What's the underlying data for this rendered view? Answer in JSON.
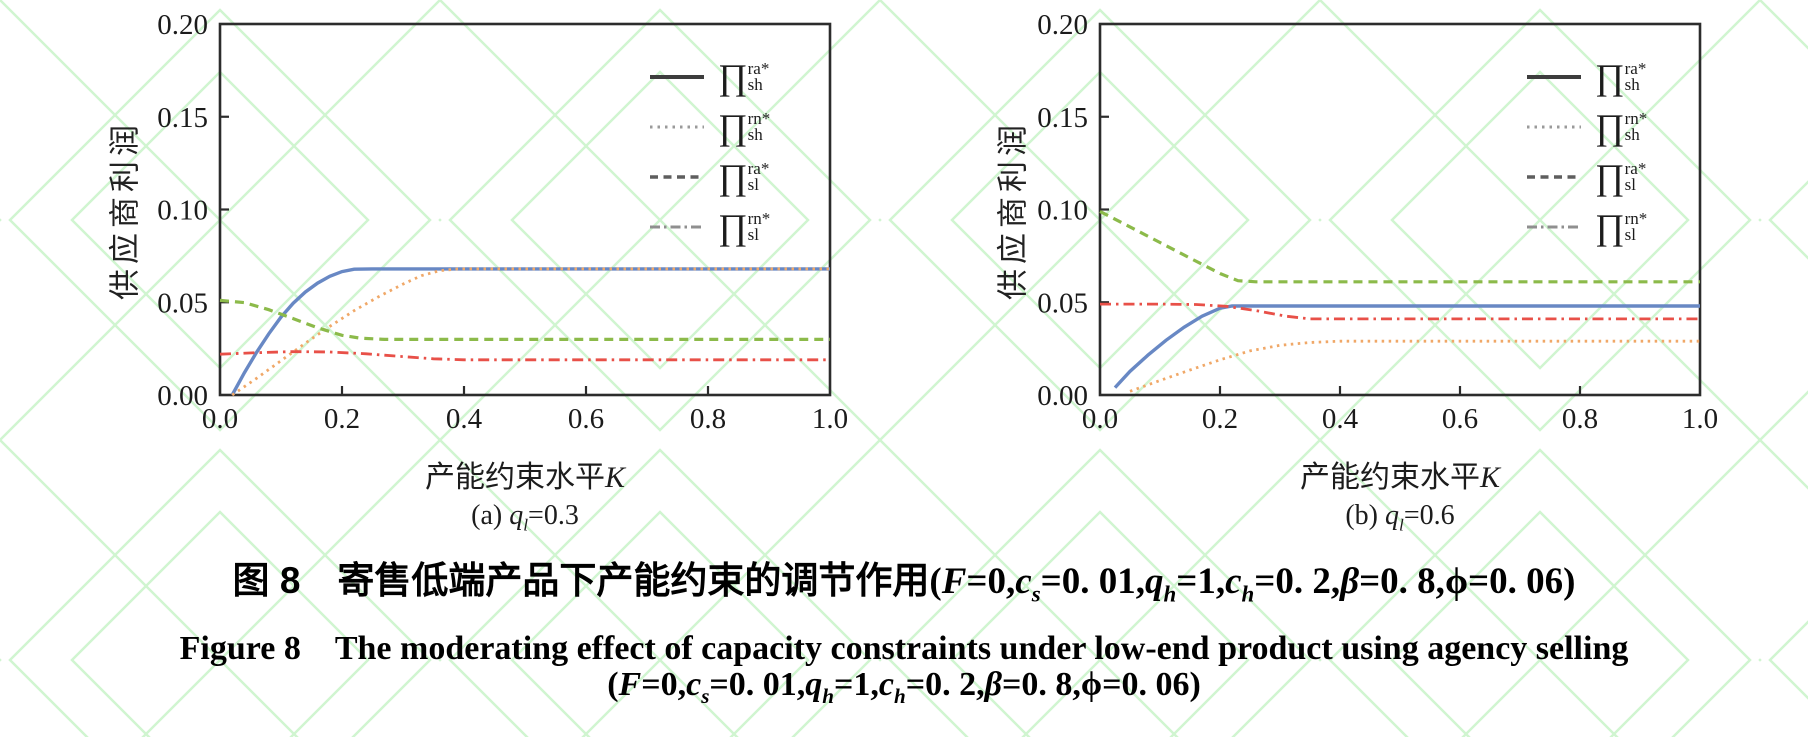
{
  "figure": {
    "caption_cn": [
      {
        "t": "图 8　寄售低端产品下产能约束的调节作用"
      },
      {
        "t": "(",
        "m": 1
      },
      {
        "t": "F",
        "m": 1,
        "i": 1
      },
      {
        "t": "=0,",
        "m": 1
      },
      {
        "t": "c",
        "m": 1,
        "i": 1
      },
      {
        "t": "s",
        "m": 1,
        "i": 1,
        "sub": 1
      },
      {
        "t": "=0. 01,",
        "m": 1
      },
      {
        "t": "q",
        "m": 1,
        "i": 1
      },
      {
        "t": "h",
        "m": 1,
        "i": 1,
        "sub": 1
      },
      {
        "t": "=1,",
        "m": 1
      },
      {
        "t": "c",
        "m": 1,
        "i": 1
      },
      {
        "t": "h",
        "m": 1,
        "i": 1,
        "sub": 1
      },
      {
        "t": "=0. 2,",
        "m": 1
      },
      {
        "t": "β",
        "m": 1,
        "i": 1
      },
      {
        "t": "=0. 8,",
        "m": 1
      },
      {
        "t": "ϕ",
        "m": 1
      },
      {
        "t": "=0. 06)",
        "m": 1
      }
    ],
    "caption_en": [
      {
        "t": "Figure 8　The moderating effect of capacity constraints under low-end product using agency selling",
        "m": 1
      }
    ],
    "caption_params": [
      {
        "t": "(",
        "m": 1
      },
      {
        "t": "F",
        "m": 1,
        "i": 1
      },
      {
        "t": "=0,",
        "m": 1
      },
      {
        "t": "c",
        "m": 1,
        "i": 1
      },
      {
        "t": "s",
        "m": 1,
        "i": 1,
        "sub": 1
      },
      {
        "t": "=0. 01,",
        "m": 1
      },
      {
        "t": "q",
        "m": 1,
        "i": 1
      },
      {
        "t": "h",
        "m": 1,
        "i": 1,
        "sub": 1
      },
      {
        "t": "=1,",
        "m": 1
      },
      {
        "t": "c",
        "m": 1,
        "i": 1
      },
      {
        "t": "h",
        "m": 1,
        "i": 1,
        "sub": 1
      },
      {
        "t": "=0. 2,",
        "m": 1
      },
      {
        "t": "β",
        "m": 1,
        "i": 1
      },
      {
        "t": "=0. 8,",
        "m": 1
      },
      {
        "t": "ϕ",
        "m": 1
      },
      {
        "t": "=0. 06)",
        "m": 1
      }
    ]
  },
  "watermark_color": "#a9eda9",
  "chart_data": [
    {
      "type": "line",
      "title": "",
      "ylabel": "供应商利润",
      "xlabel": "产能约束水平K",
      "xlabel_parts": [
        {
          "t": "产能约束水平"
        },
        {
          "t": "K",
          "m": 1,
          "i": 1
        }
      ],
      "subcaption_parts": [
        {
          "t": "(a) ",
          "m": 1
        },
        {
          "t": "q",
          "m": 1,
          "i": 1
        },
        {
          "t": "l",
          "m": 1,
          "i": 1,
          "sub": 1
        },
        {
          "t": "=0.3",
          "m": 1
        }
      ],
      "xlim": [
        0,
        1
      ],
      "ylim": [
        0,
        0.2
      ],
      "xticks": [
        "0.0",
        "0.2",
        "0.4",
        "0.6",
        "0.8",
        "1.0"
      ],
      "yticks": [
        "0.00",
        "0.05",
        "0.10",
        "0.15",
        "0.20"
      ],
      "grid": false,
      "legend_position": "upper right",
      "legend": [
        {
          "sample": "solid",
          "sup": "ra*",
          "sub": "sh",
          "label_text": "∏_sh^ra*"
        },
        {
          "sample": "dotted",
          "sup": "rn*",
          "sub": "sh",
          "label_text": "∏_sh^rn*"
        },
        {
          "sample": "dashed",
          "sup": "ra*",
          "sub": "sl",
          "label_text": "∏_sl^ra*"
        },
        {
          "sample": "dashdot",
          "sup": "rn*",
          "sub": "sl",
          "label_text": "∏_sl^rn*"
        }
      ],
      "series": [
        {
          "name": "profit-sh-ra",
          "style": "solid",
          "color": "#6888c4",
          "width": 3.4,
          "points": [
            [
              0.02,
              0
            ],
            [
              0.04,
              0.012
            ],
            [
              0.06,
              0.023
            ],
            [
              0.08,
              0.033
            ],
            [
              0.1,
              0.042
            ],
            [
              0.12,
              0.0495
            ],
            [
              0.14,
              0.0555
            ],
            [
              0.16,
              0.0603
            ],
            [
              0.18,
              0.064
            ],
            [
              0.2,
              0.0665
            ],
            [
              0.22,
              0.0678
            ],
            [
              0.25,
              0.068
            ],
            [
              1.0,
              0.068
            ]
          ]
        },
        {
          "name": "profit-sh-rn",
          "style": "dotted",
          "color": "#f0a868",
          "width": 2.8,
          "points": [
            [
              0.02,
              0
            ],
            [
              0.06,
              0.009
            ],
            [
              0.1,
              0.0185
            ],
            [
              0.14,
              0.028
            ],
            [
              0.18,
              0.037
            ],
            [
              0.22,
              0.0455
            ],
            [
              0.26,
              0.053
            ],
            [
              0.3,
              0.0598
            ],
            [
              0.33,
              0.0643
            ],
            [
              0.36,
              0.067
            ],
            [
              0.39,
              0.068
            ],
            [
              1.0,
              0.068
            ]
          ]
        },
        {
          "name": "profit-sl-ra",
          "style": "dashed",
          "color": "#8cba4a",
          "width": 3.2,
          "points": [
            [
              0,
              0.051
            ],
            [
              0.04,
              0.0498
            ],
            [
              0.08,
              0.046
            ],
            [
              0.12,
              0.0412
            ],
            [
              0.16,
              0.0362
            ],
            [
              0.2,
              0.0322
            ],
            [
              0.23,
              0.0306
            ],
            [
              0.27,
              0.03
            ],
            [
              1.0,
              0.03
            ]
          ]
        },
        {
          "name": "profit-sl-rn",
          "style": "dashdot",
          "color": "#e85048",
          "width": 2.8,
          "points": [
            [
              0,
              0.022
            ],
            [
              0.06,
              0.0228
            ],
            [
              0.12,
              0.0234
            ],
            [
              0.18,
              0.0232
            ],
            [
              0.24,
              0.0222
            ],
            [
              0.3,
              0.0207
            ],
            [
              0.35,
              0.0195
            ],
            [
              0.4,
              0.019
            ],
            [
              1.0,
              0.019
            ]
          ]
        }
      ]
    },
    {
      "type": "line",
      "title": "",
      "ylabel": "供应商利润",
      "xlabel": "产能约束水平K",
      "xlabel_parts": [
        {
          "t": "产能约束水平"
        },
        {
          "t": "K",
          "m": 1,
          "i": 1
        }
      ],
      "subcaption_parts": [
        {
          "t": "(b) ",
          "m": 1
        },
        {
          "t": "q",
          "m": 1,
          "i": 1
        },
        {
          "t": "l",
          "m": 1,
          "i": 1,
          "sub": 1
        },
        {
          "t": "=0.6",
          "m": 1
        }
      ],
      "xlim": [
        0,
        1
      ],
      "ylim": [
        0,
        0.2
      ],
      "xticks": [
        "0.0",
        "0.2",
        "0.4",
        "0.6",
        "0.8",
        "1.0"
      ],
      "yticks": [
        "0.00",
        "0.05",
        "0.10",
        "0.15",
        "0.20"
      ],
      "grid": false,
      "legend_position": "upper right",
      "legend": [
        {
          "sample": "solid",
          "sup": "ra*",
          "sub": "sh",
          "label_text": "∏_sh^ra*"
        },
        {
          "sample": "dotted",
          "sup": "rn*",
          "sub": "sh",
          "label_text": "∏_sh^rn*"
        },
        {
          "sample": "dashed",
          "sup": "ra*",
          "sub": "sl",
          "label_text": "∏_sl^ra*"
        },
        {
          "sample": "dashdot",
          "sup": "rn*",
          "sub": "sl",
          "label_text": "∏_sl^rn*"
        }
      ],
      "series": [
        {
          "name": "profit-sh-ra",
          "style": "solid",
          "color": "#6888c4",
          "width": 3.4,
          "points": [
            [
              0.025,
              0.004
            ],
            [
              0.05,
              0.0128
            ],
            [
              0.08,
              0.0215
            ],
            [
              0.11,
              0.0295
            ],
            [
              0.14,
              0.0365
            ],
            [
              0.17,
              0.0425
            ],
            [
              0.2,
              0.0468
            ],
            [
              0.22,
              0.048
            ],
            [
              1.0,
              0.048
            ]
          ]
        },
        {
          "name": "profit-sh-rn",
          "style": "dotted",
          "color": "#f0a868",
          "width": 2.8,
          "points": [
            [
              0.05,
              0.002
            ],
            [
              0.1,
              0.0078
            ],
            [
              0.15,
              0.0135
            ],
            [
              0.2,
              0.019
            ],
            [
              0.25,
              0.0238
            ],
            [
              0.3,
              0.0268
            ],
            [
              0.35,
              0.0283
            ],
            [
              0.4,
              0.029
            ],
            [
              1.0,
              0.029
            ]
          ]
        },
        {
          "name": "profit-sl-ra",
          "style": "dashed",
          "color": "#8cba4a",
          "width": 3.2,
          "points": [
            [
              0,
              0.099
            ],
            [
              0.05,
              0.0906
            ],
            [
              0.1,
              0.0822
            ],
            [
              0.15,
              0.0738
            ],
            [
              0.2,
              0.0655
            ],
            [
              0.23,
              0.0616
            ],
            [
              0.26,
              0.061
            ],
            [
              1.0,
              0.061
            ]
          ]
        },
        {
          "name": "profit-sl-rn",
          "style": "dashdot",
          "color": "#e85048",
          "width": 2.8,
          "points": [
            [
              0,
              0.049
            ],
            [
              0.1,
              0.049
            ],
            [
              0.16,
              0.0488
            ],
            [
              0.21,
              0.0478
            ],
            [
              0.26,
              0.0455
            ],
            [
              0.31,
              0.0425
            ],
            [
              0.35,
              0.041
            ],
            [
              1.0,
              0.041
            ]
          ]
        }
      ]
    }
  ]
}
